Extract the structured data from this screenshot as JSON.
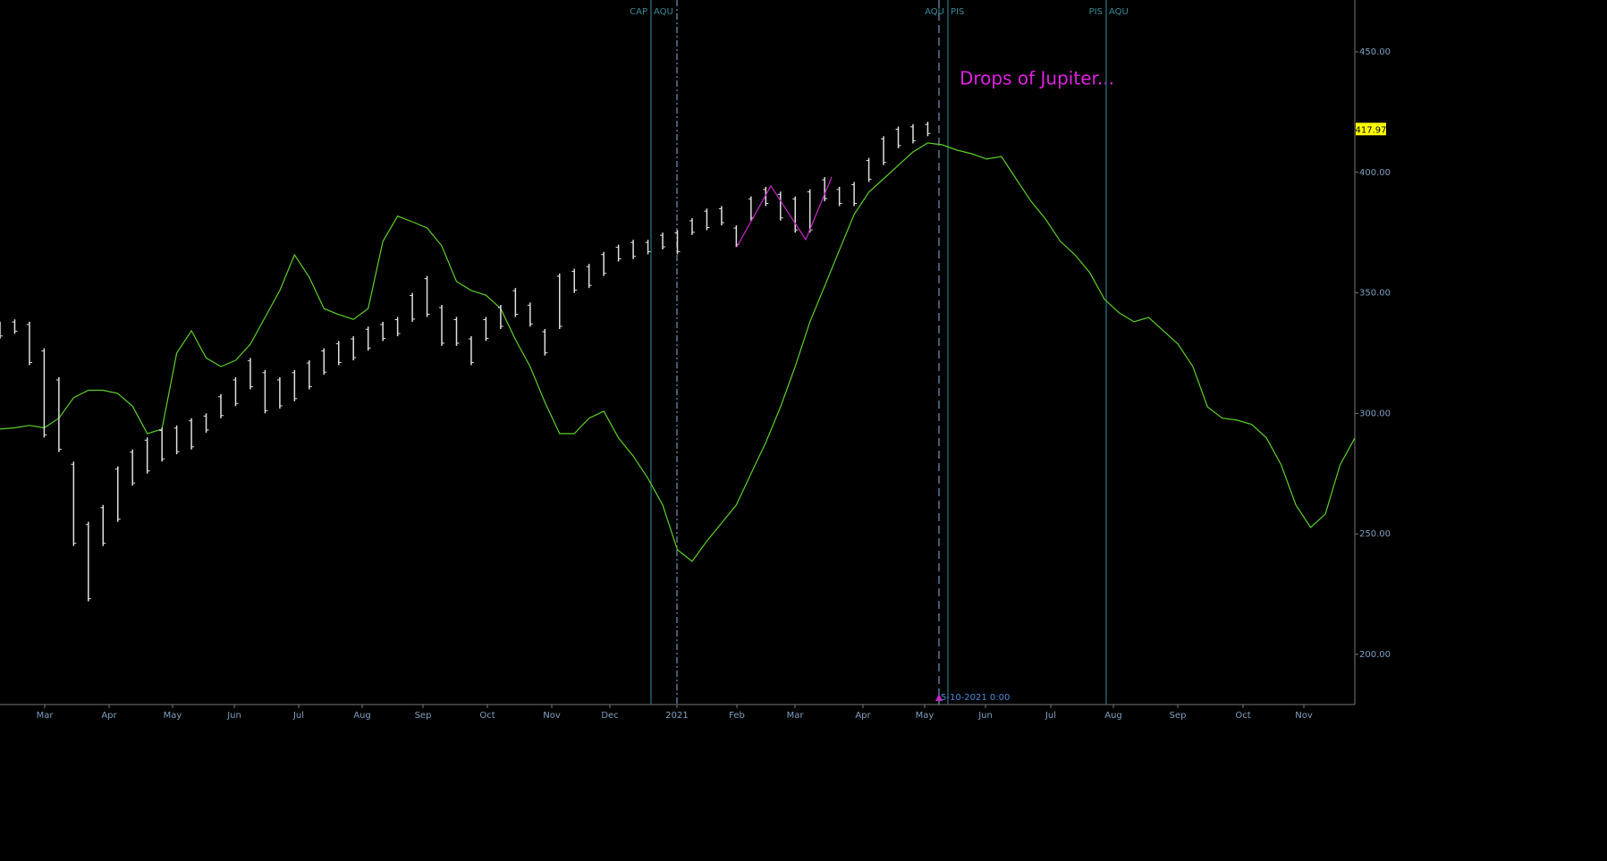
{
  "chart_data": {
    "type": "line",
    "annotation": "Drops of Jupiter...",
    "last_price": {
      "value": 417.97,
      "label": "417.97"
    },
    "cursor_date": "5-10-2021 0:00",
    "categories": [
      "Mar",
      "Apr",
      "May",
      "Jun",
      "Jul",
      "Aug",
      "Sep",
      "Oct",
      "Nov",
      "Dec",
      "2021",
      "Feb",
      "Mar",
      "Apr",
      "May",
      "Jun",
      "Jul",
      "Aug",
      "Sep",
      "Oct",
      "Nov"
    ],
    "ylim": [
      179.2,
      471.5
    ],
    "yticks": [
      {
        "value": 200,
        "label": "200.00"
      },
      {
        "value": 250,
        "label": "250.00"
      },
      {
        "value": 300,
        "label": "300.00"
      },
      {
        "value": 350,
        "label": "350.00"
      },
      {
        "value": 400,
        "label": "400.00"
      },
      {
        "value": 450,
        "label": "450.00"
      }
    ],
    "price": {
      "color": "#e0e0e0",
      "high": [
        338,
        339,
        338,
        327,
        315,
        280,
        255,
        262,
        278,
        285,
        290,
        294,
        295,
        298,
        300,
        308,
        315,
        323,
        318,
        315,
        318,
        322,
        327,
        330,
        332,
        336,
        338,
        340,
        350,
        357,
        345,
        340,
        332,
        340,
        345,
        352,
        346,
        335,
        358,
        360,
        362,
        367,
        370,
        372,
        372,
        375,
        376,
        381,
        385,
        386,
        378,
        390,
        394,
        392,
        390,
        393,
        398,
        394,
        396,
        406,
        415,
        419,
        420,
        421,
        null,
        null,
        null,
        null,
        null,
        null,
        null,
        null,
        null,
        null,
        null,
        null,
        null,
        null,
        null,
        null,
        null,
        null,
        null,
        null,
        null,
        null,
        null,
        null,
        null,
        null,
        null,
        null,
        null
      ],
      "low": [
        331,
        333,
        320,
        290,
        284,
        245,
        222,
        245,
        255,
        270,
        275,
        280,
        283,
        285,
        292,
        298,
        303,
        310,
        300,
        302,
        305,
        310,
        316,
        320,
        322,
        326,
        330,
        332,
        338,
        340,
        328,
        328,
        320,
        330,
        335,
        340,
        336,
        324,
        335,
        350,
        352,
        357,
        363,
        364,
        366,
        368,
        366,
        374,
        376,
        378,
        369,
        380,
        386,
        380,
        375,
        375,
        388,
        386,
        386,
        396,
        403,
        410,
        412,
        415,
        null,
        null,
        null,
        null,
        null,
        null,
        null,
        null,
        null,
        null,
        null,
        null,
        null,
        null,
        null,
        null,
        null,
        null,
        null,
        null,
        null,
        null,
        null,
        null,
        null,
        null,
        null,
        null,
        null
      ]
    },
    "indicator": {
      "color": "#5ccf2a",
      "values": [
        293.5,
        294,
        295,
        294,
        298,
        306.5,
        309.6,
        309.6,
        308.3,
        303,
        291.6,
        293.5,
        325,
        334.3,
        323,
        319.4,
        322,
        328.7,
        339.8,
        351,
        365.8,
        356.5,
        343.5,
        341,
        339,
        343.5,
        371.4,
        381.8,
        379.5,
        376.9,
        369.5,
        354.7,
        351,
        349,
        343.5,
        330.6,
        319.4,
        304.6,
        291.6,
        291.6,
        298,
        300.9,
        289.8,
        282.3,
        273,
        262,
        243.4,
        238.6,
        247,
        254.5,
        262,
        275,
        287.9,
        302.7,
        319.4,
        338,
        352.8,
        367.7,
        382.5,
        391.8,
        397.3,
        402.9,
        408.5,
        412.2,
        411.4,
        409.2,
        407.7,
        405.5,
        406.6,
        397.3,
        388.1,
        380.6,
        371.4,
        365.8,
        358.4,
        347.3,
        341.7,
        338,
        339.8,
        334.3,
        328.7,
        319.4,
        302.7,
        298,
        297.2,
        295.4,
        289.8,
        278.6,
        262,
        252.7,
        258.3,
        278.6,
        289.8
      ]
    },
    "pattern": {
      "color": "#c828c8",
      "values": [
        369.1,
        394.4,
        372.1,
        398
      ]
    },
    "markers": [
      {
        "labels": [
          "CAP",
          "AQU"
        ],
        "style": "solid"
      },
      {
        "style": "dashdot"
      },
      {
        "style": "dashed"
      },
      {
        "labels": [
          "AQU",
          "PIS"
        ],
        "style": "solid"
      },
      {
        "labels": [
          "PIS",
          "AQU"
        ],
        "style": "solid"
      }
    ]
  }
}
